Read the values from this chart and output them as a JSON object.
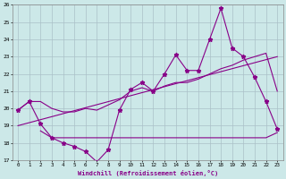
{
  "x": [
    0,
    1,
    2,
    3,
    4,
    5,
    6,
    7,
    8,
    9,
    10,
    11,
    12,
    13,
    14,
    15,
    16,
    17,
    18,
    19,
    20,
    21,
    22,
    23
  ],
  "main_line": [
    19.9,
    20.4,
    19.1,
    18.3,
    18.0,
    17.8,
    17.5,
    16.9,
    17.6,
    19.9,
    21.1,
    21.5,
    21.0,
    22.0,
    23.1,
    22.2,
    22.2,
    24.0,
    25.8,
    23.5,
    23.0,
    21.8,
    20.4,
    18.8
  ],
  "upper_smooth_line": [
    19.9,
    20.4,
    20.4,
    20.0,
    19.8,
    19.8,
    20.0,
    19.9,
    20.2,
    20.5,
    21.0,
    21.2,
    21.0,
    21.3,
    21.5,
    21.5,
    21.7,
    22.0,
    22.3,
    22.5,
    22.8,
    23.0,
    23.2,
    21.0
  ],
  "lower_flat_line_x": [
    2,
    3,
    4,
    5,
    6,
    7,
    8,
    9,
    10,
    11,
    12,
    13,
    14,
    15,
    16,
    17,
    18,
    19,
    20,
    21,
    22,
    23
  ],
  "lower_flat_line": [
    18.7,
    18.3,
    18.3,
    18.3,
    18.3,
    18.3,
    18.3,
    18.3,
    18.3,
    18.3,
    18.3,
    18.3,
    18.3,
    18.3,
    18.3,
    18.3,
    18.3,
    18.3,
    18.3,
    18.3,
    18.3,
    18.6
  ],
  "trend_line_x": [
    0,
    23
  ],
  "trend_line": [
    19.0,
    23.0
  ],
  "ylim": [
    17,
    26
  ],
  "xlim": [
    -0.5,
    23.5
  ],
  "yticks": [
    17,
    18,
    19,
    20,
    21,
    22,
    23,
    24,
    25,
    26
  ],
  "xticks": [
    0,
    1,
    2,
    3,
    4,
    5,
    6,
    7,
    8,
    9,
    10,
    11,
    12,
    13,
    14,
    15,
    16,
    17,
    18,
    19,
    20,
    21,
    22,
    23
  ],
  "xlabel": "Windchill (Refroidissement éolien,°C)",
  "line_color": "#880088",
  "bg_color": "#cce8e8",
  "grid_color": "#aac0c8"
}
